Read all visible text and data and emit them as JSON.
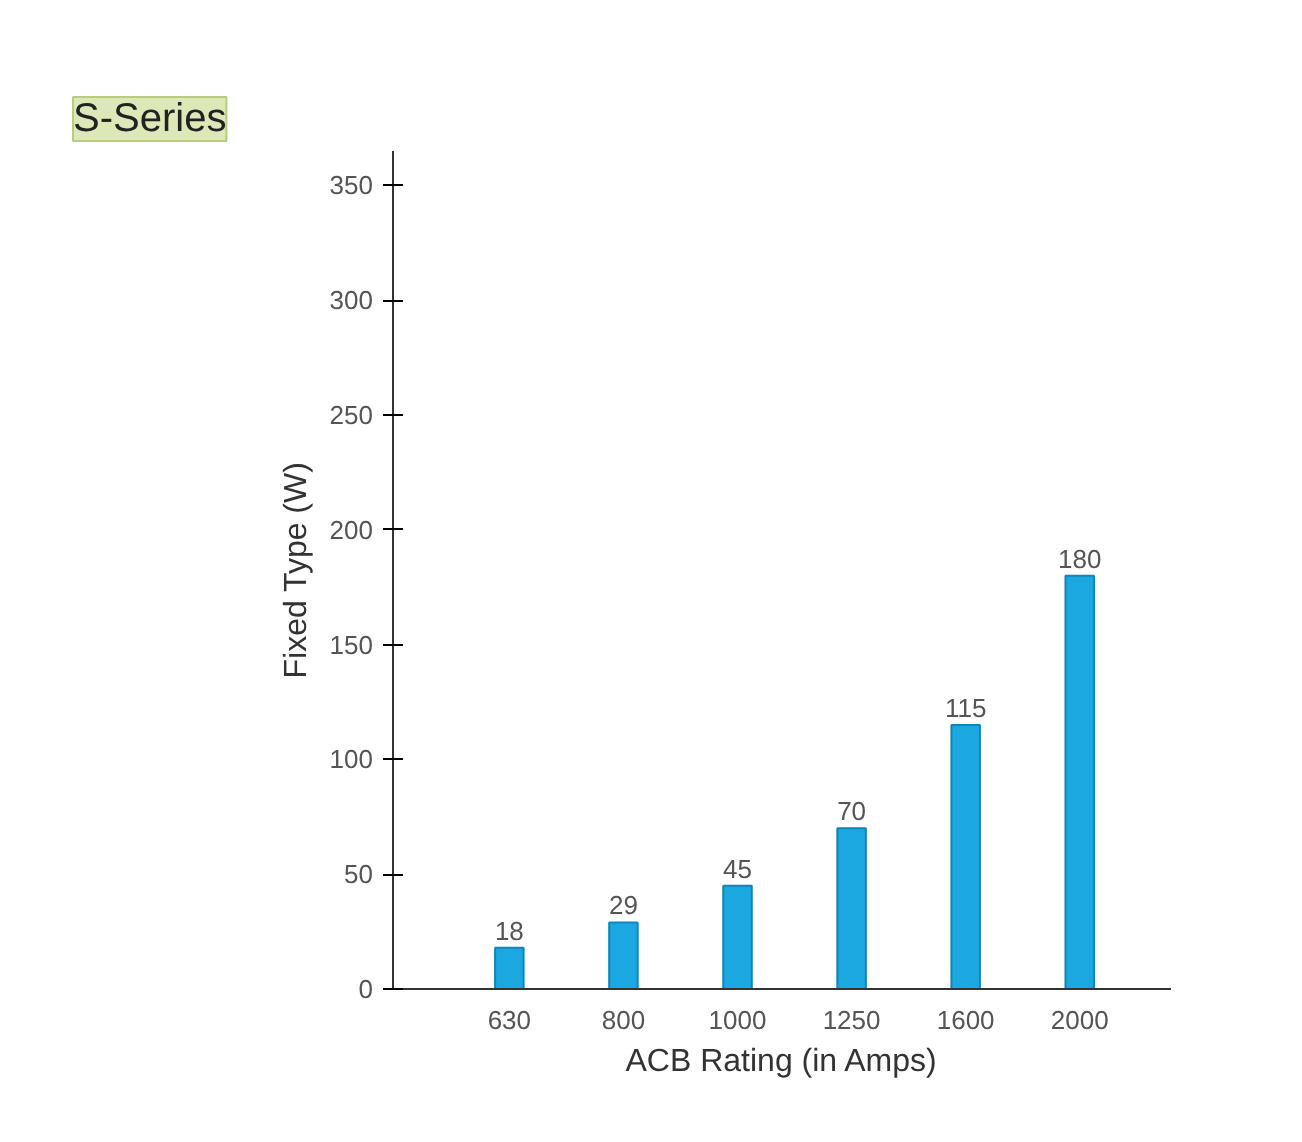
{
  "chart_data": {
    "type": "bar",
    "title": "S-Series",
    "xlabel": "ACB Rating (in Amps)",
    "ylabel": "Fixed Type (W)",
    "categories": [
      "630",
      "800",
      "1000",
      "1250",
      "1600",
      "2000"
    ],
    "values": [
      18,
      29,
      45,
      70,
      115,
      180
    ],
    "color": "#1ba7e0",
    "ylim": [
      0,
      365
    ],
    "yticks": [
      0,
      50,
      100,
      150,
      200,
      250,
      300,
      350
    ],
    "grid": false,
    "data_labels": true
  }
}
